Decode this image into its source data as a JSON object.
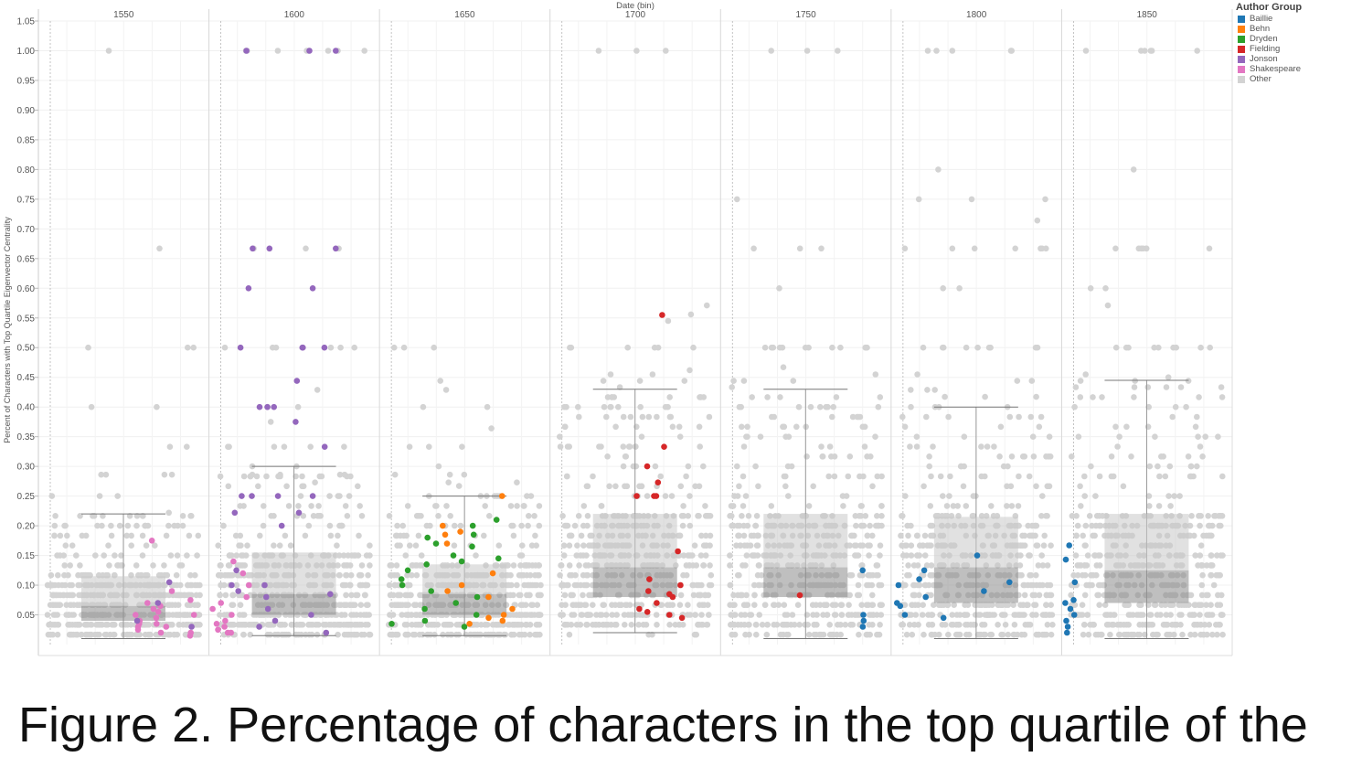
{
  "chart_data": {
    "type": "scatter",
    "top_axis_title": "Date (bin)",
    "ylabel": "Percent of Characters with Top Quartile Eigenvector Centrality",
    "ylim": [
      0,
      1.05
    ],
    "yticks": [
      "0.05",
      "0.10",
      "0.15",
      "0.20",
      "0.25",
      "0.30",
      "0.35",
      "0.40",
      "0.45",
      "0.50",
      "0.55",
      "0.60",
      "0.65",
      "0.70",
      "0.75",
      "0.80",
      "0.85",
      "0.90",
      "0.95",
      "1.00",
      "1.05"
    ],
    "bins": [
      "1550",
      "1600",
      "1650",
      "1700",
      "1750",
      "1800",
      "1850"
    ],
    "grid": true,
    "legend": {
      "title": "Author Group",
      "placement": "top-right",
      "entries": [
        {
          "label": "Baillie",
          "color": "#1f77b4"
        },
        {
          "label": "Behn",
          "color": "#ff7f0e"
        },
        {
          "label": "Dryden",
          "color": "#2ca02c"
        },
        {
          "label": "Fielding",
          "color": "#d62728"
        },
        {
          "label": "Jonson",
          "color": "#9467bd"
        },
        {
          "label": "Shakespeare",
          "color": "#e377c2"
        },
        {
          "label": "Other",
          "color": "#d3d3d3"
        }
      ]
    },
    "boxplots": [
      {
        "bin": "1550",
        "whisker_low": 0.01,
        "q1": 0.04,
        "median": 0.065,
        "q3": 0.115,
        "whisker_high": 0.22
      },
      {
        "bin": "1600",
        "whisker_low": 0.015,
        "q1": 0.05,
        "median": 0.085,
        "q3": 0.155,
        "whisker_high": 0.3
      },
      {
        "bin": "1650",
        "whisker_low": 0.015,
        "q1": 0.05,
        "median": 0.085,
        "q3": 0.135,
        "whisker_high": 0.25
      },
      {
        "bin": "1700",
        "whisker_low": 0.02,
        "q1": 0.08,
        "median": 0.13,
        "q3": 0.22,
        "whisker_high": 0.43
      },
      {
        "bin": "1750",
        "whisker_low": 0.01,
        "q1": 0.08,
        "median": 0.13,
        "q3": 0.22,
        "whisker_high": 0.43
      },
      {
        "bin": "1800",
        "whisker_low": 0.01,
        "q1": 0.07,
        "median": 0.13,
        "q3": 0.215,
        "whisker_high": 0.4
      },
      {
        "bin": "1850",
        "whisker_low": 0.01,
        "q1": 0.07,
        "median": 0.125,
        "q3": 0.22,
        "whisker_high": 0.445
      }
    ],
    "highlighted_points": [
      {
        "bin": "1550",
        "group": "Shakespeare",
        "values": [
          0.175,
          0.09,
          0.075,
          0.07,
          0.065,
          0.06,
          0.055,
          0.05,
          0.05,
          0.045,
          0.04,
          0.04,
          0.035,
          0.035,
          0.03,
          0.03,
          0.025,
          0.02,
          0.02,
          0.015
        ]
      },
      {
        "bin": "1550",
        "group": "Jonson",
        "values": [
          0.105,
          0.07,
          0.04,
          0.03
        ]
      },
      {
        "bin": "1600",
        "group": "Jonson",
        "values": [
          1.0,
          1.0,
          1.0,
          0.667,
          0.667,
          0.667,
          0.6,
          0.6,
          0.5,
          0.5,
          0.5,
          0.5,
          0.444,
          0.4,
          0.4,
          0.4,
          0.375,
          0.333,
          0.25,
          0.25,
          0.25,
          0.25,
          0.222,
          0.222,
          0.2,
          0.125,
          0.1,
          0.1,
          0.09,
          0.085,
          0.08,
          0.06,
          0.05,
          0.04,
          0.03,
          0.02
        ]
      },
      {
        "bin": "1600",
        "group": "Shakespeare",
        "values": [
          0.14,
          0.12,
          0.1,
          0.08,
          0.07,
          0.06,
          0.05,
          0.04,
          0.035,
          0.03,
          0.025,
          0.02,
          0.02
        ]
      },
      {
        "bin": "1650",
        "group": "Dryden",
        "values": [
          0.21,
          0.2,
          0.185,
          0.18,
          0.17,
          0.165,
          0.15,
          0.145,
          0.14,
          0.135,
          0.125,
          0.11,
          0.1,
          0.09,
          0.08,
          0.07,
          0.06,
          0.05,
          0.04,
          0.035,
          0.03
        ]
      },
      {
        "bin": "1650",
        "group": "Behn",
        "values": [
          0.25,
          0.2,
          0.19,
          0.185,
          0.17,
          0.12,
          0.1,
          0.09,
          0.08,
          0.06,
          0.05,
          0.045,
          0.04,
          0.035
        ]
      },
      {
        "bin": "1700",
        "group": "Fielding",
        "values": [
          0.555,
          0.333,
          0.3,
          0.273,
          0.25,
          0.25,
          0.25,
          0.157,
          0.11,
          0.1,
          0.09,
          0.085,
          0.08,
          0.07,
          0.06,
          0.055,
          0.05,
          0.045
        ]
      },
      {
        "bin": "1750",
        "group": "Fielding",
        "values": [
          0.083
        ]
      },
      {
        "bin": "1750",
        "group": "Baillie",
        "values": [
          0.125,
          0.05,
          0.04,
          0.03
        ]
      },
      {
        "bin": "1800",
        "group": "Baillie",
        "values": [
          0.15,
          0.125,
          0.11,
          0.105,
          0.1,
          0.09,
          0.08,
          0.07,
          0.065,
          0.05,
          0.045
        ]
      },
      {
        "bin": "1850",
        "group": "Baillie",
        "values": [
          0.167,
          0.143,
          0.105,
          0.075,
          0.07,
          0.06,
          0.05,
          0.04,
          0.03,
          0.02
        ]
      }
    ],
    "other_outliers": [
      {
        "bin": "1550",
        "values": [
          1.0,
          0.667,
          0.5,
          0.5,
          0.5,
          0.4,
          0.4,
          0.333,
          0.333,
          0.286,
          0.286,
          0.286,
          0.286,
          0.25,
          0.25,
          0.25,
          0.222,
          0.2
        ]
      },
      {
        "bin": "1600",
        "values": [
          1.0,
          1.0,
          1.0,
          1.0,
          1.0,
          1.0,
          1.0,
          1.0,
          0.667,
          0.667,
          0.667,
          0.5,
          0.5,
          0.5,
          0.5,
          0.5,
          0.5,
          0.429,
          0.4,
          0.4,
          0.375,
          0.333,
          0.333,
          0.333,
          0.333,
          0.333,
          0.333,
          0.286,
          0.286,
          0.286,
          0.286,
          0.273
        ]
      },
      {
        "bin": "1650",
        "values": [
          0.5,
          0.5,
          0.5,
          0.444,
          0.429,
          0.4,
          0.4,
          0.364,
          0.333,
          0.333,
          0.333,
          0.3,
          0.286,
          0.286,
          0.286,
          0.273,
          0.273,
          0.267,
          0.25,
          0.25,
          0.25,
          0.25
        ]
      },
      {
        "bin": "1700",
        "values": [
          1.0,
          1.0,
          1.0,
          0.571,
          0.556,
          0.545,
          0.5,
          0.5,
          0.5,
          0.5,
          0.5,
          0.5,
          0.462,
          0.455,
          0.455,
          0.444,
          0.444,
          0.444
        ]
      },
      {
        "bin": "1750",
        "values": [
          1.0,
          1.0,
          1.0,
          0.75,
          0.667,
          0.667,
          0.667,
          0.6,
          0.5,
          0.5,
          0.5,
          0.5,
          0.5,
          0.5,
          0.5,
          0.5,
          0.5,
          0.5,
          0.5,
          0.5,
          0.467,
          0.455,
          0.444,
          0.444,
          0.444
        ]
      },
      {
        "bin": "1800",
        "values": [
          1.0,
          1.0,
          1.0,
          1.0,
          1.0,
          0.8,
          0.75,
          0.75,
          0.75,
          0.714,
          0.667,
          0.667,
          0.667,
          0.667,
          0.667,
          0.667,
          0.667,
          0.6,
          0.6,
          0.5,
          0.5,
          0.5,
          0.5,
          0.5,
          0.5,
          0.5,
          0.5,
          0.5,
          0.455,
          0.444,
          0.444,
          0.429,
          0.429,
          0.429,
          0.417,
          0.417,
          0.417
        ]
      },
      {
        "bin": "1850",
        "values": [
          1.0,
          1.0,
          1.0,
          1.0,
          1.0,
          1.0,
          0.8,
          0.667,
          0.667,
          0.667,
          0.667,
          0.667,
          0.667,
          0.667,
          0.6,
          0.6,
          0.571,
          0.5,
          0.5,
          0.5,
          0.5,
          0.5,
          0.5,
          0.5,
          0.5,
          0.5,
          0.455,
          0.444,
          0.444,
          0.444
        ]
      }
    ]
  },
  "caption": {
    "text": "Figure 2. Percentage of characters in the top quartile of the"
  }
}
